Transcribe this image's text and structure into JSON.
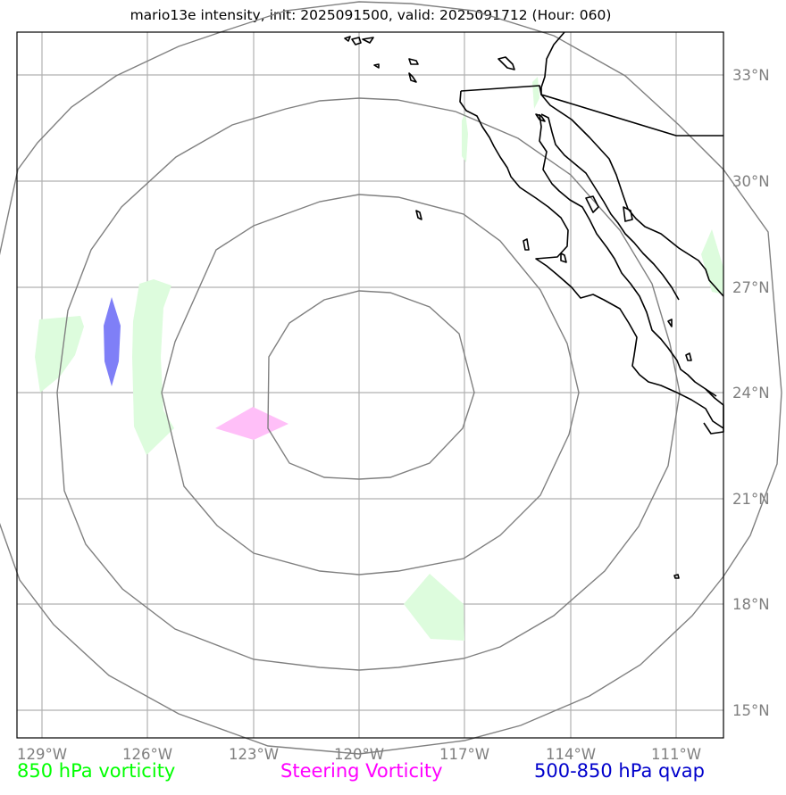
{
  "title": "mario13e intensity, init: 2025091500, valid: 2025091712 (Hour: 060)",
  "map": {
    "lon_ticks": [
      "129°W",
      "126°W",
      "123°W",
      "120°W",
      "117°W",
      "114°W",
      "111°W"
    ],
    "lat_ticks": [
      "33°N",
      "30°N",
      "27°N",
      "24°N",
      "21°N",
      "18°N",
      "15°N"
    ],
    "grid": true,
    "rings": 4,
    "colors": {
      "grid": "#b0b0b0",
      "rings": "#808080",
      "coast": "#000000",
      "vort850": "#ddfcdd",
      "steering": "#ffbff8",
      "qvap": "#7f7ff7"
    }
  },
  "legend": [
    {
      "label": "850 hPa vorticity",
      "color": "#00ff00"
    },
    {
      "label": "Steering Vorticity",
      "color": "#ff00ff"
    },
    {
      "label": "500-850 hPa qvap",
      "color": "#0000cc"
    }
  ]
}
